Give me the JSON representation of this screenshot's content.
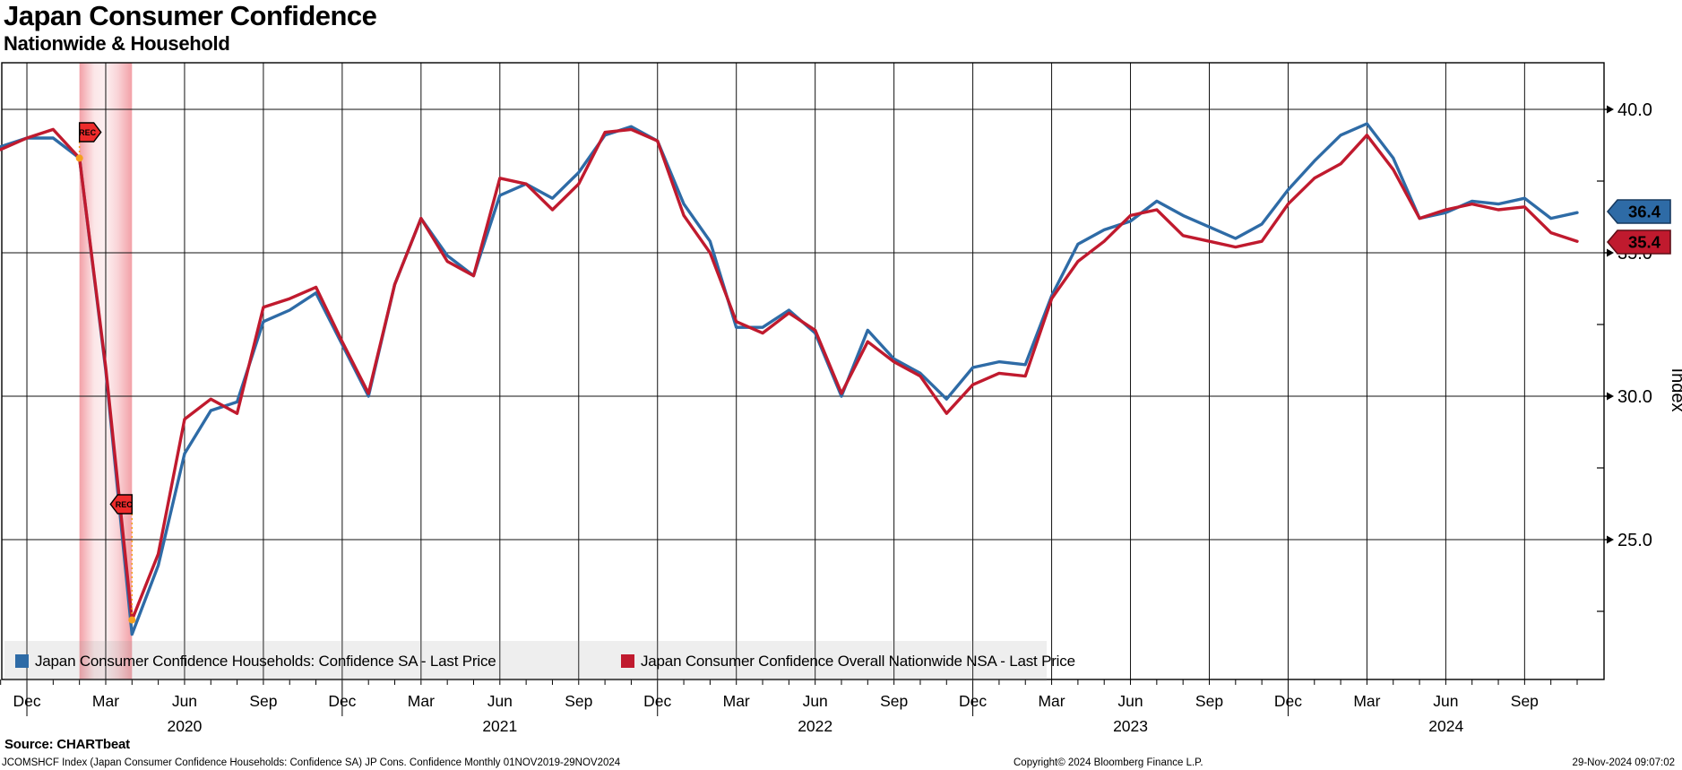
{
  "header": {
    "title": "Japan Consumer Confidence",
    "subtitle": "Nationwide & Household"
  },
  "y_axis": {
    "label": "Index",
    "major_ticks": [
      {
        "value": 40.0,
        "label": "40.0"
      },
      {
        "value": 35.0,
        "label": "35.0"
      },
      {
        "value": 30.0,
        "label": "30.0"
      },
      {
        "value": 25.0,
        "label": "25.0"
      }
    ],
    "minor_tick_values": [
      37.5,
      32.5,
      27.5,
      22.5
    ]
  },
  "x_axis": {
    "tick_labels": [
      "Dec",
      "Mar",
      "Jun",
      "Sep",
      "Dec",
      "Mar",
      "Jun",
      "Sep",
      "Dec",
      "Mar",
      "Jun",
      "Sep",
      "Dec",
      "Mar",
      "Jun",
      "Sep",
      "Dec",
      "Mar",
      "Jun",
      "Sep"
    ],
    "year_labels": [
      "2020",
      "2021",
      "2022",
      "2023",
      "2024"
    ]
  },
  "badges": [
    {
      "label": "36.4",
      "bg": "#2e6ba6",
      "border": "#16395f",
      "text_color": "#ffffff"
    },
    {
      "label": "35.4",
      "bg": "#c01a2e",
      "border": "#5e0d16",
      "text_color": "#ffffff"
    }
  ],
  "legend": {
    "items": [
      {
        "label": "Japan Consumer Confidence Households: Confidence SA - Last Price",
        "color": "#2e6ba6"
      },
      {
        "label": "Japan Consumer Confidence Overall Nationwide NSA - Last Price",
        "color": "#c01a2e"
      }
    ]
  },
  "recession": {
    "label": "REC",
    "band_start": "2020-02",
    "band_end": "2020-04",
    "band_color": "#e6414f",
    "flag_color": "#ee2b2b",
    "dot_color": "#f5a01e"
  },
  "footer": {
    "source": "Source: CHARTbeat",
    "description": "JCOMSHCF Index (Japan Consumer Confidence Households: Confidence SA) JP Cons. Confidence  Monthly 01NOV2019-29NOV2024",
    "copyright": "Copyright© 2024 Bloomberg Finance L.P.",
    "timestamp": "29-Nov-2024 09:07:02"
  },
  "chart_data": {
    "type": "line",
    "title": "Japan Consumer Confidence",
    "subtitle": "Nationwide & Household",
    "ylabel": "Index",
    "ylim": [
      20.1,
      41.6
    ],
    "y_gridlines": [
      25,
      30,
      35,
      40
    ],
    "grid": true,
    "legend_position": "bottom",
    "x_frequency": "monthly",
    "x": [
      "2019-11",
      "2019-12",
      "2020-01",
      "2020-02",
      "2020-03",
      "2020-04",
      "2020-05",
      "2020-06",
      "2020-07",
      "2020-08",
      "2020-09",
      "2020-10",
      "2020-11",
      "2020-12",
      "2021-01",
      "2021-02",
      "2021-03",
      "2021-04",
      "2021-05",
      "2021-06",
      "2021-07",
      "2021-08",
      "2021-09",
      "2021-10",
      "2021-11",
      "2021-12",
      "2022-01",
      "2022-02",
      "2022-03",
      "2022-04",
      "2022-05",
      "2022-06",
      "2022-07",
      "2022-08",
      "2022-09",
      "2022-10",
      "2022-11",
      "2022-12",
      "2023-01",
      "2023-02",
      "2023-03",
      "2023-04",
      "2023-05",
      "2023-06",
      "2023-07",
      "2023-08",
      "2023-09",
      "2023-10",
      "2023-11",
      "2023-12",
      "2024-01",
      "2024-02",
      "2024-03",
      "2024-04",
      "2024-05",
      "2024-06",
      "2024-07",
      "2024-08",
      "2024-09",
      "2024-10",
      "2024-11"
    ],
    "series": [
      {
        "name": "Japan Consumer Confidence Households: Confidence SA - Last Price",
        "color": "#2e6ba6",
        "last_value": 36.4,
        "values": [
          38.7,
          39.0,
          39.0,
          38.3,
          30.9,
          21.7,
          24.1,
          28.0,
          29.5,
          29.8,
          32.6,
          33.0,
          33.6,
          31.8,
          30.0,
          33.9,
          36.2,
          34.9,
          34.2,
          37.0,
          37.4,
          36.9,
          37.8,
          39.1,
          39.4,
          38.9,
          36.7,
          35.4,
          32.4,
          32.4,
          33.0,
          32.2,
          30.0,
          32.3,
          31.3,
          30.8,
          29.9,
          31.0,
          31.2,
          31.1,
          33.5,
          35.3,
          35.8,
          36.1,
          36.8,
          36.3,
          35.9,
          35.5,
          36.0,
          37.2,
          38.2,
          39.1,
          39.5,
          38.3,
          36.2,
          36.4,
          36.8,
          36.7,
          36.9,
          36.2,
          36.4
        ]
      },
      {
        "name": "Japan Consumer Confidence Overall Nationwide NSA - Last Price",
        "color": "#c01a2e",
        "last_value": 35.4,
        "values": [
          38.6,
          39.0,
          39.3,
          38.3,
          31.0,
          22.2,
          24.5,
          29.2,
          29.9,
          29.4,
          33.1,
          33.4,
          33.8,
          31.9,
          30.1,
          33.9,
          36.2,
          34.7,
          34.2,
          37.6,
          37.4,
          36.5,
          37.4,
          39.2,
          39.3,
          38.9,
          36.3,
          35.0,
          32.6,
          32.2,
          32.9,
          32.3,
          30.1,
          31.9,
          31.2,
          30.7,
          29.4,
          30.4,
          30.8,
          30.7,
          33.4,
          34.7,
          35.4,
          36.3,
          36.5,
          35.6,
          35.4,
          35.2,
          35.4,
          36.7,
          37.6,
          38.1,
          39.1,
          37.9,
          36.2,
          36.5,
          36.7,
          36.5,
          36.6,
          35.7,
          35.4
        ]
      }
    ],
    "recession_band": {
      "start": "2020-02",
      "end": "2020-04",
      "label": "REC"
    }
  }
}
